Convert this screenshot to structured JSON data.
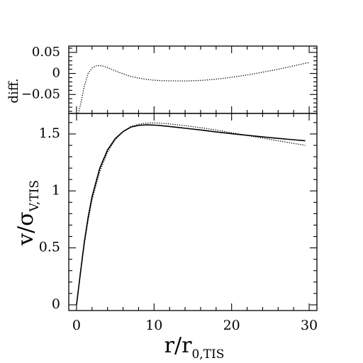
{
  "chart_data": [
    {
      "panel": "top",
      "type": "line",
      "ylabel": "diff.",
      "xlim": [
        -1,
        31
      ],
      "ylim": [
        -0.095,
        0.065
      ],
      "yticks": [
        0.05,
        0,
        -0.05
      ],
      "ytick_labels": [
        "0.05",
        "0",
        "−0.05"
      ],
      "grid": false,
      "series": [
        {
          "style": "dotted",
          "x": [
            0.25,
            0.5,
            1,
            1.5,
            2,
            2.5,
            3,
            3.5,
            4,
            5,
            6,
            7,
            8,
            9,
            10,
            11,
            12,
            13,
            14,
            15,
            16,
            17,
            18,
            19,
            20,
            21,
            22,
            23,
            24,
            25,
            26,
            27,
            28,
            29,
            30
          ],
          "y": [
            -0.1,
            -0.075,
            -0.03,
            0.0,
            0.013,
            0.018,
            0.019,
            0.017,
            0.014,
            0.006,
            -0.001,
            -0.007,
            -0.011,
            -0.014,
            -0.016,
            -0.017,
            -0.0175,
            -0.0178,
            -0.0178,
            -0.0174,
            -0.0165,
            -0.0152,
            -0.0135,
            -0.0115,
            -0.009,
            -0.0065,
            -0.0035,
            -0.0005,
            0.003,
            0.0065,
            0.01,
            0.014,
            0.018,
            0.022,
            0.026
          ]
        }
      ]
    },
    {
      "panel": "bottom",
      "type": "line",
      "xlabel_main": "r/r",
      "xlabel_sub": "0,TIS",
      "ylabel_main": "v/σ",
      "ylabel_sub": "V,TIS",
      "xlim": [
        -1,
        31
      ],
      "ylim": [
        -0.05,
        1.68
      ],
      "xticks": [
        0,
        10,
        20,
        30
      ],
      "xtick_labels": [
        "0",
        "10",
        "20",
        "30"
      ],
      "yticks": [
        0,
        0.5,
        1,
        1.5
      ],
      "ytick_labels": [
        "0",
        "0.5",
        "1",
        "1.5"
      ],
      "grid": false,
      "series": [
        {
          "style": "solid",
          "x": [
            0,
            0.5,
            1,
            1.5,
            2,
            3,
            4,
            5,
            6,
            7,
            8,
            9,
            10,
            11,
            12,
            14,
            16,
            18,
            20,
            22,
            24,
            26,
            28,
            29.5
          ],
          "y": [
            0,
            0.28,
            0.55,
            0.77,
            0.95,
            1.2,
            1.36,
            1.46,
            1.52,
            1.56,
            1.575,
            1.58,
            1.578,
            1.572,
            1.565,
            1.55,
            1.535,
            1.518,
            1.502,
            1.488,
            1.474,
            1.461,
            1.449,
            1.44
          ]
        },
        {
          "style": "dotted",
          "x": [
            0,
            0.5,
            1,
            1.5,
            2,
            3,
            4,
            5,
            6,
            7,
            8,
            9,
            10,
            11,
            12,
            14,
            16,
            18,
            20,
            22,
            24,
            26,
            28,
            29.5
          ],
          "y": [
            0,
            0.27,
            0.53,
            0.74,
            0.92,
            1.17,
            1.34,
            1.45,
            1.52,
            1.565,
            1.585,
            1.595,
            1.597,
            1.594,
            1.588,
            1.573,
            1.555,
            1.535,
            1.51,
            1.487,
            1.463,
            1.44,
            1.417,
            1.4
          ]
        }
      ]
    }
  ]
}
